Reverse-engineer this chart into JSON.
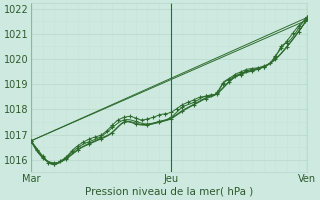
{
  "xlabel": "Pression niveau de la mer( hPa )",
  "bg_color": "#ceeae0",
  "grid_major_color": "#b8d8cc",
  "grid_minor_color": "#c8e4d8",
  "line_color": "#2d6b2d",
  "ylim": [
    1015.5,
    1022.2
  ],
  "yticks": [
    1016,
    1017,
    1018,
    1019,
    1020,
    1021,
    1022
  ],
  "xtick_labels": [
    "Mar",
    "Jeu",
    "Ven"
  ],
  "xtick_pos": [
    0,
    48,
    95
  ],
  "vline_pos": [
    0,
    48,
    95
  ],
  "lines": {
    "smooth": [
      [
        0,
        1016.75
      ],
      [
        4,
        1016.1
      ],
      [
        8,
        1015.85
      ],
      [
        12,
        1016.05
      ],
      [
        16,
        1016.4
      ],
      [
        20,
        1016.65
      ],
      [
        24,
        1016.85
      ],
      [
        28,
        1017.1
      ],
      [
        32,
        1017.5
      ],
      [
        36,
        1017.45
      ],
      [
        40,
        1017.4
      ],
      [
        44,
        1017.5
      ],
      [
        48,
        1017.65
      ],
      [
        52,
        1017.95
      ],
      [
        56,
        1018.2
      ],
      [
        60,
        1018.45
      ],
      [
        64,
        1018.65
      ],
      [
        68,
        1019.1
      ],
      [
        72,
        1019.4
      ],
      [
        76,
        1019.55
      ],
      [
        80,
        1019.7
      ],
      [
        84,
        1020.0
      ],
      [
        88,
        1020.5
      ],
      [
        92,
        1021.1
      ],
      [
        95,
        1021.6
      ]
    ],
    "line_straight1": [
      [
        0,
        1016.75
      ],
      [
        95,
        1021.65
      ]
    ],
    "line_straight2": [
      [
        0,
        1016.75
      ],
      [
        95,
        1021.55
      ]
    ],
    "marked1": [
      [
        0,
        1016.75
      ],
      [
        2,
        1016.4
      ],
      [
        4,
        1016.1
      ],
      [
        6,
        1015.88
      ],
      [
        8,
        1015.82
      ],
      [
        10,
        1015.95
      ],
      [
        12,
        1016.1
      ],
      [
        14,
        1016.35
      ],
      [
        16,
        1016.55
      ],
      [
        18,
        1016.7
      ],
      [
        20,
        1016.82
      ],
      [
        22,
        1016.9
      ],
      [
        24,
        1016.98
      ],
      [
        26,
        1017.15
      ],
      [
        28,
        1017.38
      ],
      [
        30,
        1017.58
      ],
      [
        32,
        1017.68
      ],
      [
        34,
        1017.72
      ],
      [
        36,
        1017.65
      ],
      [
        38,
        1017.58
      ],
      [
        40,
        1017.62
      ],
      [
        42,
        1017.68
      ],
      [
        44,
        1017.78
      ],
      [
        46,
        1017.82
      ],
      [
        48,
        1017.88
      ],
      [
        50,
        1018.02
      ],
      [
        52,
        1018.18
      ],
      [
        54,
        1018.28
      ],
      [
        56,
        1018.38
      ],
      [
        58,
        1018.48
      ],
      [
        60,
        1018.52
      ],
      [
        62,
        1018.58
      ],
      [
        64,
        1018.65
      ],
      [
        66,
        1019.02
      ],
      [
        68,
        1019.18
      ],
      [
        70,
        1019.32
      ],
      [
        72,
        1019.42
      ],
      [
        74,
        1019.52
      ],
      [
        76,
        1019.58
      ],
      [
        78,
        1019.62
      ],
      [
        80,
        1019.68
      ],
      [
        82,
        1019.82
      ],
      [
        84,
        1020.12
      ],
      [
        86,
        1020.42
      ],
      [
        88,
        1020.72
      ],
      [
        90,
        1021.02
      ],
      [
        92,
        1021.32
      ],
      [
        94,
        1021.52
      ],
      [
        95,
        1021.65
      ]
    ],
    "marked2": [
      [
        0,
        1016.75
      ],
      [
        4,
        1016.15
      ],
      [
        8,
        1015.82
      ],
      [
        12,
        1016.08
      ],
      [
        16,
        1016.48
      ],
      [
        20,
        1016.72
      ],
      [
        24,
        1016.92
      ],
      [
        28,
        1017.28
      ],
      [
        32,
        1017.58
      ],
      [
        36,
        1017.52
      ],
      [
        40,
        1017.42
      ],
      [
        44,
        1017.52
      ],
      [
        48,
        1017.68
      ],
      [
        52,
        1018.08
      ],
      [
        56,
        1018.28
      ],
      [
        60,
        1018.52
      ],
      [
        64,
        1018.68
      ],
      [
        66,
        1019.05
      ],
      [
        68,
        1019.22
      ],
      [
        70,
        1019.38
      ],
      [
        72,
        1019.48
      ],
      [
        74,
        1019.58
      ],
      [
        76,
        1019.62
      ],
      [
        78,
        1019.65
      ],
      [
        80,
        1019.72
      ],
      [
        84,
        1020.08
      ],
      [
        86,
        1020.5
      ],
      [
        88,
        1020.65
      ],
      [
        92,
        1021.22
      ],
      [
        95,
        1021.68
      ]
    ],
    "marked3": [
      [
        0,
        1016.75
      ],
      [
        4,
        1016.08
      ],
      [
        8,
        1015.88
      ],
      [
        12,
        1016.02
      ],
      [
        16,
        1016.38
      ],
      [
        20,
        1016.62
      ],
      [
        24,
        1016.82
      ],
      [
        28,
        1017.08
      ],
      [
        32,
        1017.48
      ],
      [
        36,
        1017.42
      ],
      [
        40,
        1017.38
      ],
      [
        44,
        1017.48
      ],
      [
        48,
        1017.62
      ],
      [
        52,
        1017.92
      ],
      [
        56,
        1018.18
      ],
      [
        60,
        1018.42
      ],
      [
        64,
        1018.62
      ],
      [
        68,
        1019.08
      ],
      [
        72,
        1019.38
      ],
      [
        76,
        1019.52
      ],
      [
        80,
        1019.68
      ],
      [
        84,
        1019.98
      ],
      [
        88,
        1020.48
      ],
      [
        92,
        1021.08
      ],
      [
        95,
        1021.58
      ]
    ]
  }
}
